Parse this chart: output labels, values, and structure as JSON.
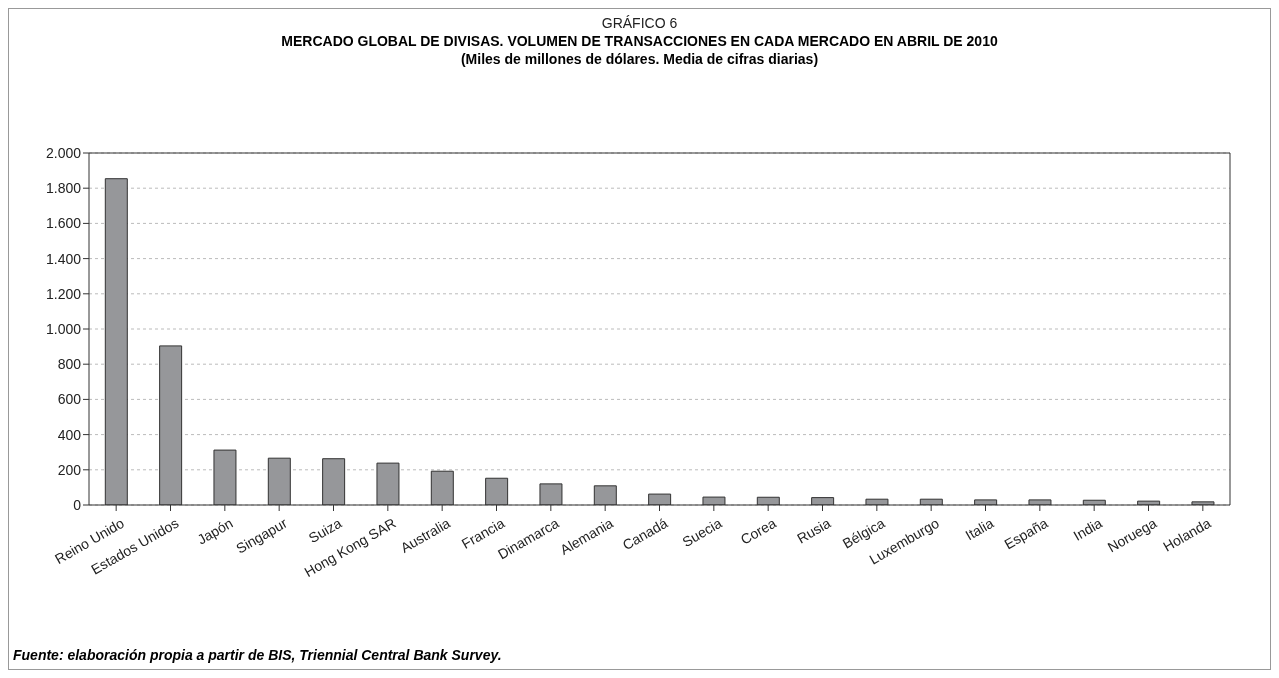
{
  "chart_data": {
    "type": "bar",
    "title": "MERCADO GLOBAL DE DIVISAS. VOLUMEN DE TRANSACCIONES EN CADA MERCADO EN ABRIL DE 2010",
    "subtitle": "(Miles de millones de dólares. Media de cifras diarias)",
    "annotations": [
      "GRÁFICO 6",
      "Fuente: elaboración propia a partir de BIS, Triennial Central Bank Survey."
    ],
    "categories": [
      "Reino Unido",
      "Estados Unidos",
      "Japón",
      "Singapur",
      "Suiza",
      "Hong Kong SAR",
      "Australia",
      "Francia",
      "Dinamarca",
      "Alemania",
      "Canadá",
      "Suecia",
      "Corea",
      "Rusia",
      "Bélgica",
      "Luxemburgo",
      "Italia",
      "España",
      "India",
      "Noruega",
      "Holanda"
    ],
    "values": [
      1854,
      904,
      312,
      266,
      263,
      238,
      192,
      152,
      120,
      109,
      62,
      45,
      44,
      42,
      33,
      33,
      29,
      29,
      27,
      22,
      18
    ],
    "color": "#96979a",
    "ylim": [
      0,
      2000
    ],
    "yticks": [
      {
        "value": 0,
        "label": "0"
      },
      {
        "value": 200,
        "label": "200"
      },
      {
        "value": 400,
        "label": "400"
      },
      {
        "value": 600,
        "label": "600"
      },
      {
        "value": 800,
        "label": "800"
      },
      {
        "value": 1000,
        "label": "1.000"
      },
      {
        "value": 1200,
        "label": "1.200"
      },
      {
        "value": 1400,
        "label": "1.400"
      },
      {
        "value": 1600,
        "label": "1.600"
      },
      {
        "value": 1800,
        "label": "1.800"
      },
      {
        "value": 2000,
        "label": "2.000"
      }
    ],
    "grid": "y"
  }
}
